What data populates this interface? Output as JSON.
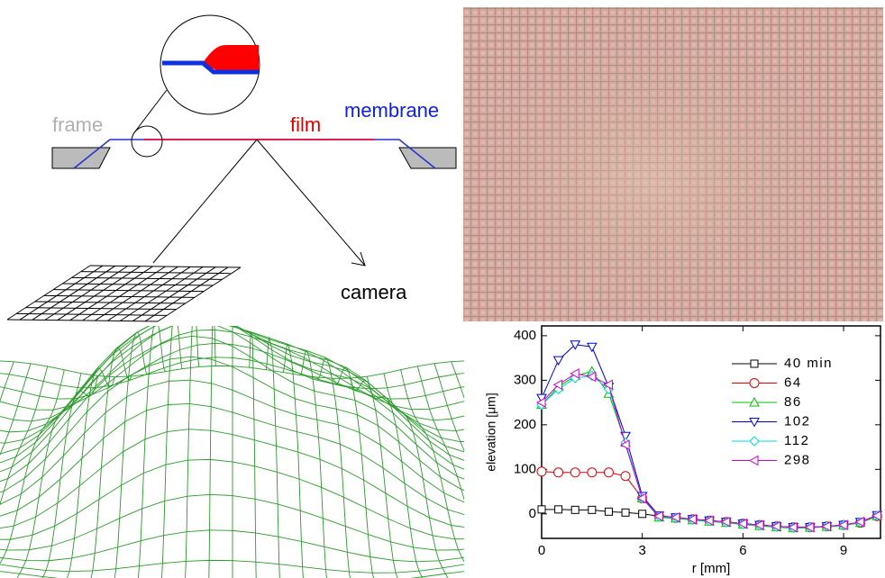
{
  "diagram": {
    "labels": {
      "frame": "frame",
      "film": "film",
      "membrane": "membrane",
      "camera": "camera"
    }
  },
  "chart_data": {
    "type": "line",
    "x_label": "r [mm]",
    "y_label": "elevation [μm]",
    "x": [
      0,
      0.5,
      1,
      1.5,
      2,
      2.5,
      3,
      3.5,
      4,
      4.5,
      5,
      5.5,
      6,
      6.5,
      7,
      7.5,
      8,
      8.5,
      9,
      9.5,
      10
    ],
    "xlim": [
      0,
      10.1
    ],
    "ylim": [
      -55,
      422
    ],
    "xticks": [
      0,
      3,
      6,
      9
    ],
    "yticks": [
      0,
      100,
      200,
      300,
      400
    ],
    "legend": "upper right",
    "series": [
      {
        "name": "40 min",
        "color": "#000000",
        "marker": "square",
        "values": [
          10,
          10,
          9,
          9,
          5,
          3,
          0,
          -5,
          -8,
          -12,
          -15,
          -18,
          -22,
          -25,
          -28,
          -30,
          -30,
          -28,
          -25,
          -20,
          -5
        ]
      },
      {
        "name": "64",
        "color": "#e00000",
        "marker": "circle",
        "values": [
          95,
          93,
          93,
          93,
          93,
          85,
          35,
          -5,
          -9,
          -12,
          -15,
          -18,
          -22,
          -25,
          -28,
          -30,
          -30,
          -28,
          -25,
          -20,
          -5
        ]
      },
      {
        "name": "86",
        "color": "#00c000",
        "marker": "triangle-up",
        "values": [
          245,
          285,
          310,
          320,
          270,
          160,
          35,
          -8,
          -10,
          -14,
          -17,
          -20,
          -24,
          -27,
          -30,
          -32,
          -31,
          -29,
          -26,
          -20,
          -5
        ]
      },
      {
        "name": "102",
        "color": "#0000e0",
        "marker": "triangle-down",
        "values": [
          260,
          345,
          380,
          375,
          285,
          175,
          40,
          -4,
          -8,
          -12,
          -15,
          -18,
          -22,
          -25,
          -28,
          -30,
          -30,
          -28,
          -25,
          -18,
          -3
        ]
      },
      {
        "name": "112",
        "color": "#00d8d8",
        "marker": "diamond",
        "values": [
          245,
          280,
          305,
          310,
          280,
          160,
          35,
          -6,
          -9,
          -13,
          -16,
          -19,
          -23,
          -26,
          -29,
          -31,
          -30,
          -28,
          -25,
          -19,
          -4
        ]
      },
      {
        "name": "298",
        "color": "#d000d0",
        "marker": "triangle-left",
        "values": [
          250,
          290,
          315,
          308,
          290,
          155,
          35,
          -5,
          -8,
          -12,
          -15,
          -18,
          -22,
          -25,
          -28,
          -30,
          -30,
          -28,
          -25,
          -18,
          -4
        ]
      }
    ]
  }
}
